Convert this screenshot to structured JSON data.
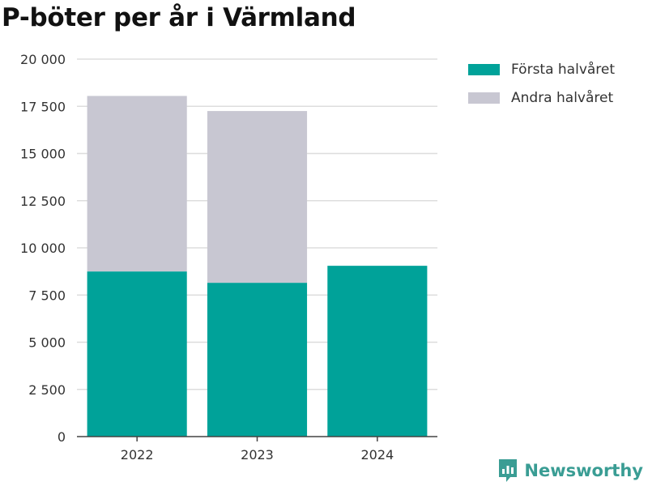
{
  "title": "P-böter per år i Värmland",
  "brand": {
    "name": "Newsworthy",
    "color": "#3a9d94"
  },
  "chart_data": {
    "type": "bar",
    "stacked": true,
    "categories": [
      "2022",
      "2023",
      "2024"
    ],
    "series": [
      {
        "name": "Första halvåret",
        "color": "#00a299",
        "values": [
          8750,
          8150,
          9050
        ]
      },
      {
        "name": "Andra halvåret",
        "color": "#c8c7d2",
        "values": [
          9300,
          9100,
          null
        ]
      }
    ],
    "ylim": [
      0,
      20000
    ],
    "yticks": [
      0,
      2500,
      5000,
      7500,
      10000,
      12500,
      15000,
      17500,
      20000
    ],
    "ytick_labels": [
      "0",
      "2 500",
      "5 000",
      "7 500",
      "10 000",
      "12 500",
      "15 000",
      "17 500",
      "20 000"
    ],
    "grid": true,
    "legend": "top-right",
    "xlabel": "",
    "ylabel": ""
  }
}
